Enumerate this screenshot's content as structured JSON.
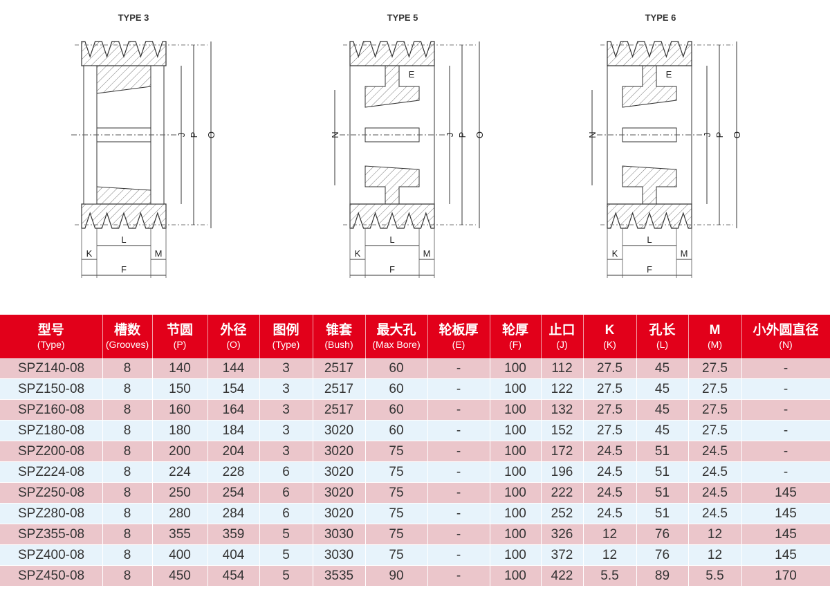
{
  "diagrams": [
    {
      "title": "TYPE 3",
      "type": 3,
      "labels": {
        "J": "J",
        "P": "P",
        "O": "O",
        "L": "L",
        "K": "K",
        "M": "M",
        "F": "F"
      }
    },
    {
      "title": "TYPE 5",
      "type": 5,
      "labels": {
        "J": "J",
        "P": "P",
        "O": "O",
        "L": "L",
        "K": "K",
        "M": "M",
        "F": "F",
        "N": "N",
        "E": "E"
      }
    },
    {
      "title": "TYPE 6",
      "type": 6,
      "labels": {
        "J": "J",
        "P": "P",
        "O": "O",
        "L": "L",
        "K": "K",
        "M": "M",
        "F": "F",
        "N": "N",
        "E": "E"
      }
    }
  ],
  "colors": {
    "header": "#e2001a",
    "row_odd": "#ebc6cb",
    "row_even": "#e7f3fb"
  },
  "table": {
    "headers": [
      {
        "cn": "型号",
        "en": "(Type)"
      },
      {
        "cn": "槽数",
        "en": "(Grooves)"
      },
      {
        "cn": "节圆",
        "en": "(P)"
      },
      {
        "cn": "外径",
        "en": "(O)"
      },
      {
        "cn": "图例",
        "en": "(Type)"
      },
      {
        "cn": "锥套",
        "en": "(Bush)"
      },
      {
        "cn": "最大孔",
        "en": "(Max Bore)"
      },
      {
        "cn": "轮板厚",
        "en": "(E)"
      },
      {
        "cn": "轮厚",
        "en": "(F)"
      },
      {
        "cn": "止口",
        "en": "(J)"
      },
      {
        "cn": "K",
        "en": "(K)"
      },
      {
        "cn": "孔长",
        "en": "(L)"
      },
      {
        "cn": "M",
        "en": "(M)"
      },
      {
        "cn": "小外圆直径",
        "en": "(N)"
      }
    ],
    "rows": [
      [
        "SPZ140-08",
        "8",
        "140",
        "144",
        "3",
        "2517",
        "60",
        "-",
        "100",
        "112",
        "27.5",
        "45",
        "27.5",
        "-"
      ],
      [
        "SPZ150-08",
        "8",
        "150",
        "154",
        "3",
        "2517",
        "60",
        "-",
        "100",
        "122",
        "27.5",
        "45",
        "27.5",
        "-"
      ],
      [
        "SPZ160-08",
        "8",
        "160",
        "164",
        "3",
        "2517",
        "60",
        "-",
        "100",
        "132",
        "27.5",
        "45",
        "27.5",
        "-"
      ],
      [
        "SPZ180-08",
        "8",
        "180",
        "184",
        "3",
        "3020",
        "60",
        "-",
        "100",
        "152",
        "27.5",
        "45",
        "27.5",
        "-"
      ],
      [
        "SPZ200-08",
        "8",
        "200",
        "204",
        "3",
        "3020",
        "75",
        "-",
        "100",
        "172",
        "24.5",
        "51",
        "24.5",
        "-"
      ],
      [
        "SPZ224-08",
        "8",
        "224",
        "228",
        "6",
        "3020",
        "75",
        "-",
        "100",
        "196",
        "24.5",
        "51",
        "24.5",
        "-"
      ],
      [
        "SPZ250-08",
        "8",
        "250",
        "254",
        "6",
        "3020",
        "75",
        "-",
        "100",
        "222",
        "24.5",
        "51",
        "24.5",
        "145"
      ],
      [
        "SPZ280-08",
        "8",
        "280",
        "284",
        "6",
        "3020",
        "75",
        "-",
        "100",
        "252",
        "24.5",
        "51",
        "24.5",
        "145"
      ],
      [
        "SPZ355-08",
        "8",
        "355",
        "359",
        "5",
        "3030",
        "75",
        "-",
        "100",
        "326",
        "12",
        "76",
        "12",
        "145"
      ],
      [
        "SPZ400-08",
        "8",
        "400",
        "404",
        "5",
        "3030",
        "75",
        "-",
        "100",
        "372",
        "12",
        "76",
        "12",
        "145"
      ],
      [
        "SPZ450-08",
        "8",
        "450",
        "454",
        "5",
        "3535",
        "90",
        "-",
        "100",
        "422",
        "5.5",
        "89",
        "5.5",
        "170"
      ]
    ]
  }
}
